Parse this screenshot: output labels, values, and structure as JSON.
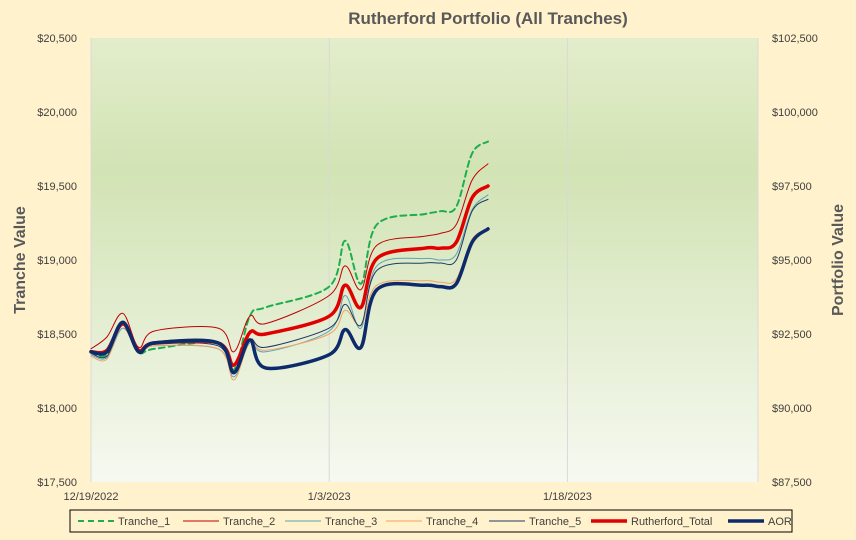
{
  "chart_data": {
    "type": "line",
    "title": "Rutherford Portfolio (All Tranches)",
    "ylabel_left": "Tranche Value",
    "ylabel_right": "Portfolio Value",
    "x_ticks": [
      "12/19/2022",
      "1/3/2023",
      "1/18/2023"
    ],
    "x_range": [
      "2022-12-19",
      "2023-01-30"
    ],
    "y_left_range": [
      17500,
      20500
    ],
    "y_left_ticks": [
      "$17,500",
      "$18,000",
      "$18,500",
      "$19,000",
      "$19,500",
      "$20,000",
      "$20,500"
    ],
    "y_right_range": [
      87500,
      102500
    ],
    "y_right_ticks": [
      "$87,500",
      "$90,000",
      "$92,500",
      "$95,000",
      "$97,500",
      "$100,000",
      "$102,500"
    ],
    "grid": "vertical",
    "legend_position": "bottom",
    "dates": [
      "2022-12-19",
      "2022-12-20",
      "2022-12-21",
      "2022-12-22",
      "2022-12-23",
      "2022-12-27",
      "2022-12-28",
      "2022-12-29",
      "2022-12-30",
      "2023-01-03",
      "2023-01-04",
      "2023-01-05",
      "2023-01-06",
      "2023-01-09",
      "2023-01-10",
      "2023-01-11",
      "2023-01-12",
      "2023-01-13"
    ],
    "series": [
      {
        "name": "Tranche_1",
        "axis": "left",
        "color": "#1FAE4C",
        "width": 2,
        "dash": "6,4",
        "values": [
          18380,
          18360,
          18580,
          18380,
          18400,
          18440,
          18260,
          18620,
          18680,
          18820,
          19130,
          18840,
          19240,
          19310,
          19330,
          19360,
          19720,
          19800
        ]
      },
      {
        "name": "Tranche_2",
        "axis": "left",
        "color": "#C00000",
        "width": 1,
        "values": [
          18400,
          18480,
          18640,
          18410,
          18520,
          18540,
          18380,
          18620,
          18570,
          18760,
          18960,
          18800,
          19100,
          19160,
          19180,
          19240,
          19540,
          19650
        ]
      },
      {
        "name": "Tranche_3",
        "axis": "left",
        "color": "#5BA3B5",
        "width": 1,
        "values": [
          18360,
          18340,
          18540,
          18380,
          18420,
          18400,
          18210,
          18440,
          18380,
          18520,
          18760,
          18540,
          18960,
          19010,
          19000,
          19040,
          19340,
          19440
        ]
      },
      {
        "name": "Tranche_4",
        "axis": "left",
        "color": "#F4A261",
        "width": 1,
        "values": [
          18350,
          18330,
          18560,
          18370,
          18420,
          18400,
          18190,
          18450,
          18390,
          18500,
          18660,
          18560,
          18830,
          18860,
          18850,
          18870,
          19140,
          19210
        ]
      },
      {
        "name": "Tranche_5",
        "axis": "left",
        "color": "#1F3864",
        "width": 1,
        "values": [
          18370,
          18350,
          18560,
          18380,
          18430,
          18420,
          18230,
          18460,
          18410,
          18540,
          18700,
          18560,
          18930,
          18980,
          18980,
          19000,
          19330,
          19410
        ]
      },
      {
        "name": "Rutherford_Total",
        "axis": "right",
        "color": "#E00000",
        "width": 3.5,
        "values": [
          91900,
          91950,
          92850,
          91950,
          92200,
          92200,
          91450,
          92550,
          92500,
          93100,
          94150,
          93400,
          95050,
          95400,
          95400,
          95600,
          97100,
          97500
        ]
      },
      {
        "name": "AOR",
        "axis": "left",
        "color": "#0D2A6B",
        "width": 3.5,
        "values": [
          18380,
          18380,
          18580,
          18380,
          18440,
          18440,
          18240,
          18460,
          18270,
          18360,
          18530,
          18410,
          18800,
          18830,
          18820,
          18840,
          19120,
          19210
        ]
      }
    ]
  }
}
